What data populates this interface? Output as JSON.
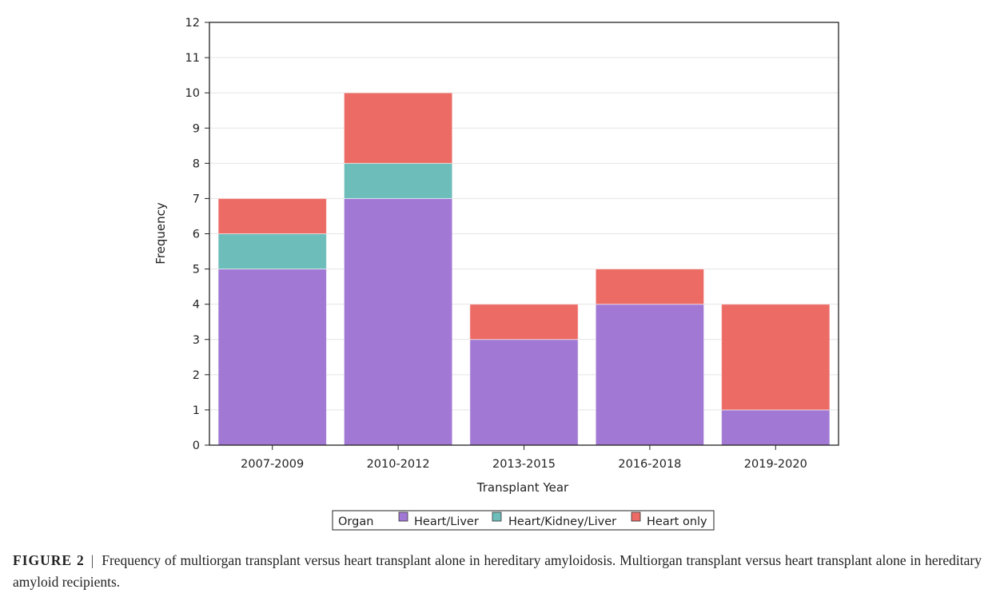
{
  "chart_data": {
    "type": "bar",
    "stacked": true,
    "categories": [
      "2007-2009",
      "2010-2012",
      "2013-2015",
      "2016-2018",
      "2019-2020"
    ],
    "series": [
      {
        "name": "Heart/Liver",
        "values": [
          5,
          7,
          3,
          4,
          1
        ],
        "color": "#a178d4"
      },
      {
        "name": "Heart/Kidney/Liver",
        "values": [
          1,
          1,
          0,
          0,
          0
        ],
        "color": "#6dbdba"
      },
      {
        "name": "Heart only",
        "values": [
          1,
          2,
          1,
          1,
          3
        ],
        "color": "#ec6b65"
      }
    ],
    "xlabel": "Transplant Year",
    "ylabel": "Frequency",
    "ylim": [
      0,
      12
    ],
    "yticks": [
      "0",
      "1",
      "2",
      "3",
      "4",
      "5",
      "6",
      "7",
      "8",
      "9",
      "10",
      "11",
      "12"
    ],
    "grid": true,
    "legend": {
      "title": "Organ",
      "placement": "bottom-center"
    }
  },
  "caption": {
    "label": "FIGURE 2",
    "separator": "|",
    "text": "Frequency of multiorgan transplant versus heart transplant alone in hereditary amyloidosis. Multiorgan transplant versus heart transplant alone in hereditary amyloid recipients."
  }
}
